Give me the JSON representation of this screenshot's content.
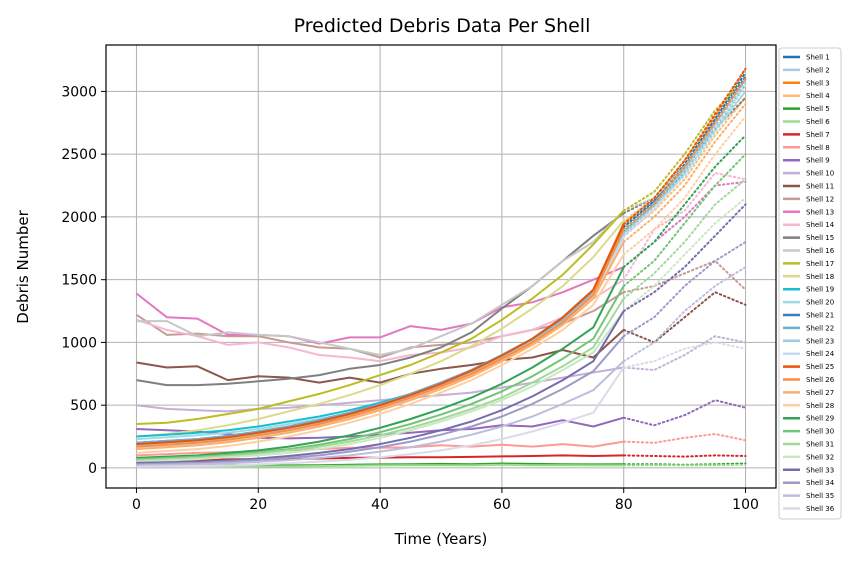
{
  "chart_data": {
    "type": "line",
    "title": "Predicted Debris Data Per Shell",
    "xlabel": "Time (Years)",
    "ylabel": "Debris Number",
    "xlim": [
      -5,
      105
    ],
    "ylim": [
      -160,
      3370
    ],
    "xticks": [
      0,
      20,
      40,
      60,
      80,
      100
    ],
    "yticks": [
      0,
      500,
      1000,
      1500,
      2000,
      2500,
      3000
    ],
    "grid": true,
    "legend_position": "outside-right",
    "solid_until_x": 80,
    "dotted_after_x": 80,
    "x": [
      0,
      5,
      10,
      15,
      20,
      25,
      30,
      35,
      40,
      45,
      50,
      55,
      60,
      65,
      70,
      75,
      80,
      85,
      90,
      95,
      100
    ],
    "series": [
      {
        "name": "Shell 1",
        "color": "#1f77b4",
        "values": [
          180,
          195,
          210,
          235,
          270,
          310,
          360,
          420,
          490,
          570,
          660,
          760,
          880,
          1010,
          1180,
          1400,
          1920,
          2130,
          2420,
          2780,
          3150
        ]
      },
      {
        "name": "Shell 2",
        "color": "#aec7e8",
        "values": [
          170,
          185,
          200,
          225,
          260,
          300,
          350,
          410,
          480,
          560,
          650,
          750,
          870,
          1000,
          1160,
          1380,
          1880,
          2100,
          2380,
          2740,
          3100
        ]
      },
      {
        "name": "Shell 3",
        "color": "#ff7f0e",
        "values": [
          190,
          205,
          220,
          245,
          280,
          320,
          370,
          430,
          500,
          580,
          670,
          775,
          895,
          1030,
          1200,
          1420,
          1950,
          2150,
          2450,
          2800,
          3180
        ]
      },
      {
        "name": "Shell 4",
        "color": "#ffbb78",
        "values": [
          160,
          175,
          190,
          215,
          250,
          290,
          340,
          400,
          470,
          550,
          640,
          740,
          860,
          990,
          1150,
          1370,
          1850,
          2050,
          2300,
          2650,
          2950
        ]
      },
      {
        "name": "Shell 5",
        "color": "#2ca02c",
        "values": [
          40,
          35,
          30,
          25,
          20,
          20,
          22,
          25,
          28,
          30,
          32,
          30,
          35,
          32,
          30,
          28,
          30,
          30,
          25,
          30,
          35
        ]
      },
      {
        "name": "Shell 6",
        "color": "#98df8a",
        "values": [
          20,
          18,
          15,
          15,
          12,
          12,
          15,
          18,
          20,
          22,
          22,
          20,
          25,
          22,
          22,
          20,
          20,
          22,
          20,
          22,
          25
        ]
      },
      {
        "name": "Shell 7",
        "color": "#d62728",
        "values": [
          60,
          62,
          65,
          68,
          70,
          70,
          75,
          80,
          82,
          85,
          85,
          88,
          92,
          95,
          100,
          95,
          100,
          95,
          90,
          100,
          95
        ]
      },
      {
        "name": "Shell 8",
        "color": "#ff9896",
        "values": [
          100,
          110,
          120,
          125,
          130,
          140,
          150,
          160,
          160,
          165,
          180,
          170,
          185,
          170,
          190,
          170,
          210,
          200,
          240,
          270,
          220
        ]
      },
      {
        "name": "Shell 9",
        "color": "#9467bd",
        "values": [
          310,
          300,
          290,
          270,
          240,
          235,
          240,
          250,
          265,
          280,
          300,
          310,
          340,
          330,
          380,
          330,
          400,
          340,
          420,
          540,
          480
        ]
      },
      {
        "name": "Shell 10",
        "color": "#c5b0d5",
        "values": [
          500,
          470,
          460,
          450,
          470,
          480,
          500,
          520,
          540,
          560,
          580,
          600,
          640,
          680,
          720,
          760,
          800,
          780,
          900,
          1050,
          1000
        ]
      },
      {
        "name": "Shell 11",
        "color": "#8c564b",
        "values": [
          840,
          800,
          810,
          700,
          730,
          720,
          680,
          720,
          680,
          750,
          790,
          820,
          860,
          880,
          940,
          880,
          1100,
          1000,
          1200,
          1400,
          1300
        ]
      },
      {
        "name": "Shell 12",
        "color": "#c49c94",
        "values": [
          1220,
          1060,
          1070,
          1050,
          1050,
          1000,
          960,
          950,
          880,
          960,
          980,
          1000,
          1050,
          1100,
          1150,
          1250,
          1400,
          1450,
          1550,
          1650,
          1420
        ]
      },
      {
        "name": "Shell 13",
        "color": "#e377c2",
        "values": [
          1390,
          1200,
          1190,
          1060,
          1060,
          1050,
          990,
          1040,
          1040,
          1130,
          1100,
          1150,
          1280,
          1320,
          1400,
          1500,
          1600,
          1800,
          2000,
          2250,
          2280
        ]
      },
      {
        "name": "Shell 14",
        "color": "#f7b6d2",
        "values": [
          1180,
          1100,
          1050,
          980,
          1000,
          960,
          900,
          880,
          850,
          900,
          920,
          960,
          1050,
          1100,
          1200,
          1350,
          1500,
          1900,
          2050,
          2350,
          2300
        ]
      },
      {
        "name": "Shell 15",
        "color": "#7f7f7f",
        "values": [
          700,
          660,
          660,
          670,
          690,
          710,
          740,
          790,
          820,
          880,
          960,
          1080,
          1270,
          1450,
          1650,
          1850,
          2030,
          2150,
          2400,
          2700,
          2950
        ]
      },
      {
        "name": "Shell 16",
        "color": "#c7c7c7",
        "values": [
          1170,
          1170,
          1050,
          1080,
          1060,
          1050,
          1000,
          950,
          900,
          950,
          1050,
          1150,
          1300,
          1450,
          1650,
          1800,
          2050,
          2150,
          2400,
          2700,
          3000
        ]
      },
      {
        "name": "Shell 17",
        "color": "#bcbd22",
        "values": [
          350,
          360,
          390,
          430,
          470,
          530,
          590,
          660,
          740,
          820,
          920,
          1030,
          1180,
          1350,
          1540,
          1780,
          2050,
          2200,
          2500,
          2850,
          3100
        ]
      },
      {
        "name": "Shell 18",
        "color": "#dbdb8d",
        "values": [
          250,
          270,
          300,
          340,
          390,
          450,
          510,
          580,
          660,
          750,
          850,
          970,
          1110,
          1270,
          1450,
          1680,
          1970,
          2150,
          2400,
          2750,
          3050
        ]
      },
      {
        "name": "Shell 19",
        "color": "#17becf",
        "values": [
          250,
          265,
          280,
          300,
          330,
          370,
          410,
          460,
          520,
          590,
          670,
          770,
          880,
          1010,
          1170,
          1380,
          1880,
          2100,
          2350,
          2700,
          3050
        ]
      },
      {
        "name": "Shell 20",
        "color": "#9edae5",
        "values": [
          230,
          245,
          260,
          280,
          310,
          350,
          390,
          440,
          500,
          570,
          650,
          750,
          860,
          990,
          1150,
          1360,
          1860,
          2080,
          2330,
          2680,
          3000
        ]
      },
      {
        "name": "Shell 21",
        "color": "#3a7fb8",
        "values": [
          200,
          215,
          230,
          255,
          290,
          330,
          380,
          440,
          510,
          590,
          680,
          780,
          900,
          1030,
          1190,
          1410,
          1900,
          2120,
          2400,
          2760,
          3120
        ]
      },
      {
        "name": "Shell 22",
        "color": "#6baed6",
        "values": [
          200,
          215,
          230,
          255,
          290,
          330,
          380,
          440,
          510,
          590,
          680,
          780,
          900,
          1030,
          1190,
          1410,
          1900,
          2110,
          2390,
          2750,
          3100
        ]
      },
      {
        "name": "Shell 23",
        "color": "#9ecae1",
        "values": [
          180,
          195,
          210,
          235,
          270,
          310,
          360,
          420,
          490,
          570,
          660,
          760,
          880,
          1010,
          1170,
          1390,
          1870,
          2090,
          2370,
          2730,
          3080
        ]
      },
      {
        "name": "Shell 24",
        "color": "#c6dbef",
        "values": [
          160,
          175,
          190,
          215,
          250,
          290,
          340,
          400,
          470,
          550,
          640,
          740,
          860,
          990,
          1150,
          1370,
          1840,
          2060,
          2340,
          2700,
          3050
        ]
      },
      {
        "name": "Shell 25",
        "color": "#e6550d",
        "values": [
          190,
          205,
          220,
          245,
          280,
          320,
          370,
          430,
          500,
          580,
          670,
          775,
          895,
          1030,
          1200,
          1420,
          1940,
          2150,
          2450,
          2820,
          3180
        ]
      },
      {
        "name": "Shell 26",
        "color": "#fd8d3c",
        "values": [
          170,
          185,
          200,
          225,
          260,
          300,
          350,
          410,
          480,
          560,
          650,
          750,
          870,
          1000,
          1160,
          1380,
          1900,
          2100,
          2400,
          2750,
          3100
        ]
      },
      {
        "name": "Shell 27",
        "color": "#fdae6b",
        "values": [
          150,
          165,
          180,
          205,
          240,
          280,
          330,
          390,
          460,
          540,
          630,
          730,
          850,
          980,
          1140,
          1350,
          1800,
          2000,
          2250,
          2600,
          2900
        ]
      },
      {
        "name": "Shell 28",
        "color": "#fdd0a2",
        "values": [
          120,
          135,
          150,
          175,
          210,
          250,
          300,
          360,
          430,
          510,
          600,
          700,
          820,
          950,
          1100,
          1300,
          1700,
          1900,
          2150,
          2500,
          2800
        ]
      },
      {
        "name": "Shell 29",
        "color": "#31a354",
        "values": [
          80,
          90,
          100,
          120,
          140,
          170,
          210,
          260,
          320,
          390,
          470,
          560,
          670,
          800,
          950,
          1120,
          1600,
          1800,
          2100,
          2400,
          2650
        ]
      },
      {
        "name": "Shell 30",
        "color": "#74c476",
        "values": [
          70,
          80,
          90,
          105,
          125,
          150,
          185,
          230,
          285,
          350,
          425,
          510,
          610,
          730,
          870,
          1030,
          1450,
          1650,
          1950,
          2250,
          2500
        ]
      },
      {
        "name": "Shell 31",
        "color": "#a1d99b",
        "values": [
          60,
          70,
          80,
          95,
          115,
          140,
          170,
          210,
          260,
          320,
          390,
          470,
          560,
          680,
          810,
          960,
          1350,
          1550,
          1800,
          2100,
          2300
        ]
      },
      {
        "name": "Shell 32",
        "color": "#c7e9c0",
        "values": [
          50,
          60,
          70,
          85,
          100,
          120,
          150,
          190,
          240,
          300,
          370,
          450,
          540,
          650,
          780,
          920,
          1250,
          1450,
          1700,
          1950,
          2150
        ]
      },
      {
        "name": "Shell 33",
        "color": "#756bb1",
        "values": [
          40,
          45,
          50,
          60,
          75,
          95,
          120,
          150,
          190,
          240,
          300,
          370,
          460,
          570,
          700,
          850,
          1250,
          1400,
          1600,
          1850,
          2100
        ]
      },
      {
        "name": "Shell 34",
        "color": "#9e9ac8",
        "values": [
          30,
          35,
          40,
          50,
          62,
          80,
          100,
          130,
          165,
          210,
          265,
          330,
          410,
          510,
          630,
          770,
          1050,
          1200,
          1450,
          1650,
          1800
        ]
      },
      {
        "name": "Shell 35",
        "color": "#bcbddc",
        "values": [
          20,
          25,
          30,
          38,
          48,
          62,
          80,
          100,
          130,
          165,
          210,
          265,
          330,
          410,
          510,
          620,
          850,
          1000,
          1250,
          1450,
          1600
        ]
      },
      {
        "name": "Shell 36",
        "color": "#dadaeb",
        "values": [
          10,
          12,
          15,
          20,
          28,
          38,
          50,
          65,
          85,
          110,
          140,
          180,
          230,
          290,
          360,
          440,
          800,
          850,
          950,
          1000,
          950
        ]
      }
    ]
  }
}
